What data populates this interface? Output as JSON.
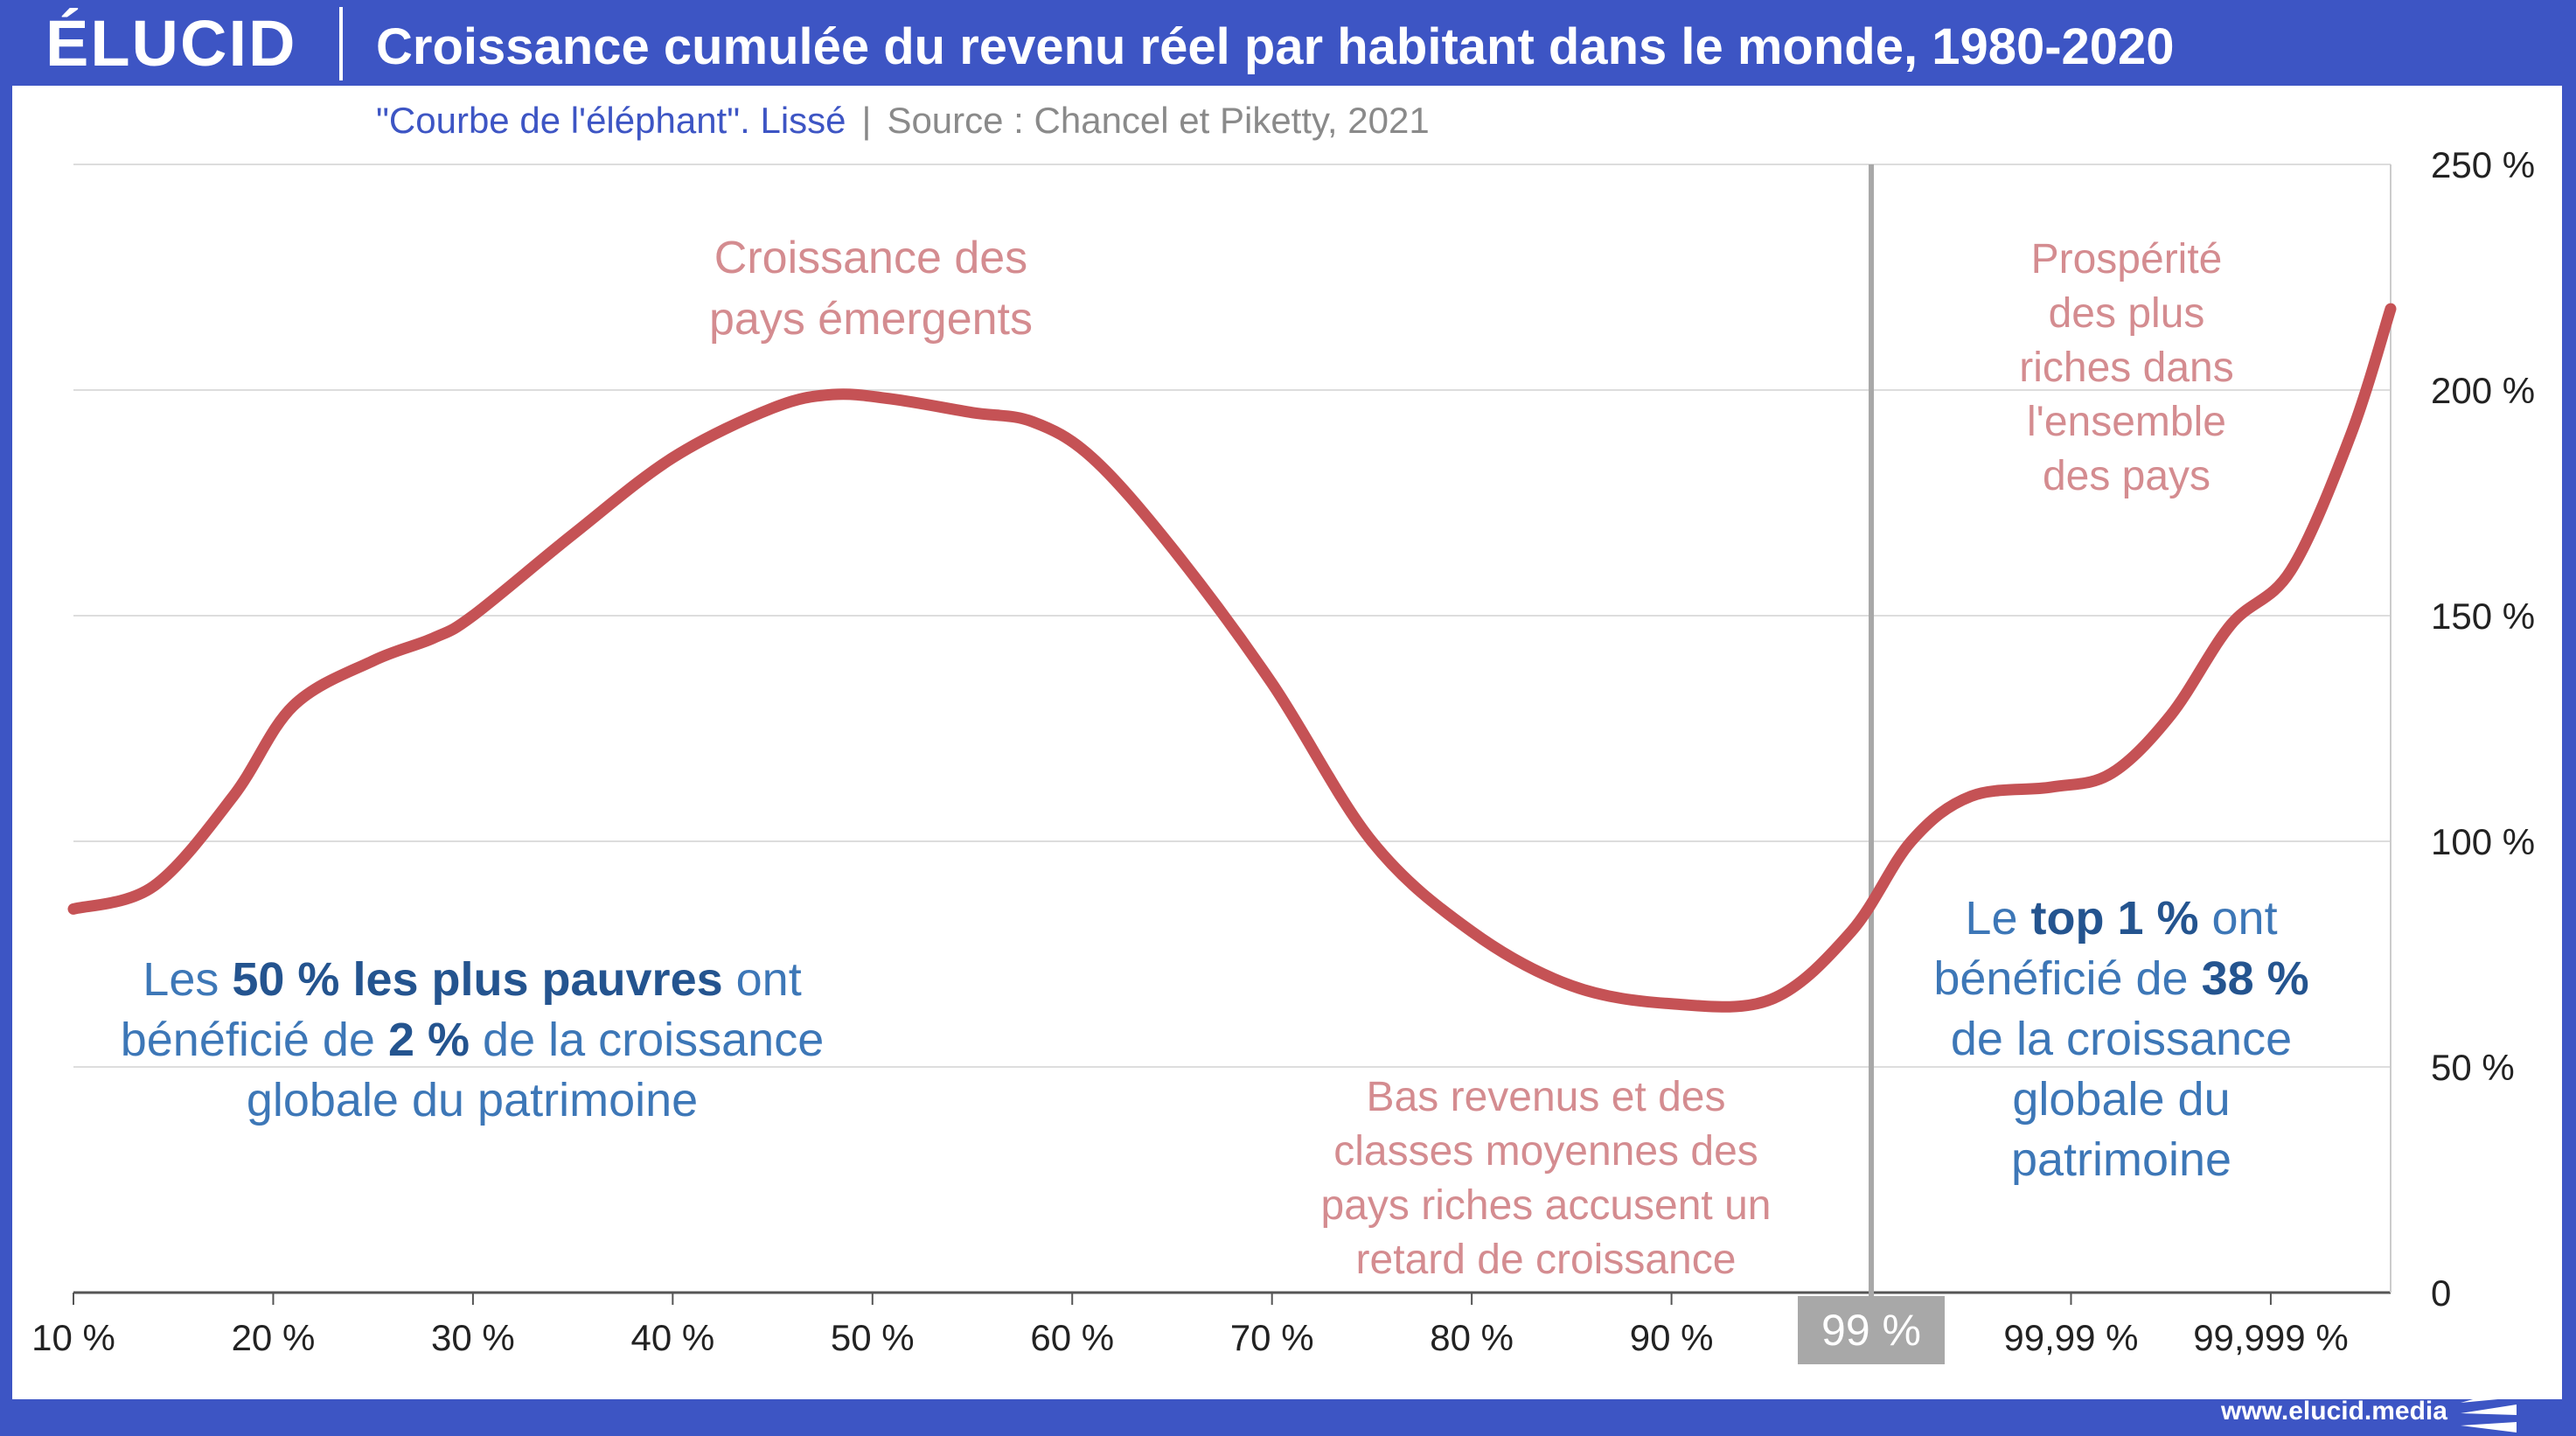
{
  "header": {
    "logo": "ÉLUCID",
    "title": "Croissance cumulée du revenu réel par habitant dans le monde, 1980-2020"
  },
  "subtitle": {
    "left": "\"Courbe de l'éléphant\". Lissé",
    "separator": "|",
    "right": "Source : Chancel et Piketty, 2021"
  },
  "footer": {
    "url": "www.elucid.media"
  },
  "colors": {
    "frame": "#3d55c4",
    "line": "#c55255",
    "annotation_pink": "#d48c90",
    "annotation_blue": "#3d77b7",
    "annotation_blue_bold": "#24548f",
    "marker_grey": "#a8a8a8"
  },
  "chart_data": {
    "type": "line",
    "xlabel": "",
    "ylabel": "",
    "ylim": [
      0,
      250
    ],
    "y_ticks": [
      {
        "value": 0,
        "label": "0"
      },
      {
        "value": 50,
        "label": "50 %"
      },
      {
        "value": 100,
        "label": "100 %"
      },
      {
        "value": 150,
        "label": "150 %"
      },
      {
        "value": 200,
        "label": "200 %"
      },
      {
        "value": 250,
        "label": "250 %"
      }
    ],
    "x_ticks": [
      {
        "label": "10 %"
      },
      {
        "label": "20 %"
      },
      {
        "label": "30 %"
      },
      {
        "label": "40 %"
      },
      {
        "label": "50 %"
      },
      {
        "label": "60 %"
      },
      {
        "label": "70 %"
      },
      {
        "label": "80 %"
      },
      {
        "label": "90 %"
      },
      {
        "label": "99 %",
        "highlight": true
      },
      {
        "label": "99,99 %"
      },
      {
        "label": "99,999 %"
      }
    ],
    "grid": true,
    "legend": "none",
    "x_index_range": [
      0,
      11.6
    ],
    "series": [
      {
        "points": [
          [
            0,
            85
          ],
          [
            0.4,
            90
          ],
          [
            0.8,
            110
          ],
          [
            1.1,
            130
          ],
          [
            1.5,
            140
          ],
          [
            1.8,
            145
          ],
          [
            2.0,
            150
          ],
          [
            2.5,
            168
          ],
          [
            3.0,
            185
          ],
          [
            3.5,
            196
          ],
          [
            3.8,
            199
          ],
          [
            4.1,
            198
          ],
          [
            4.5,
            195
          ],
          [
            4.8,
            193
          ],
          [
            5.1,
            185
          ],
          [
            5.5,
            165
          ],
          [
            6.0,
            135
          ],
          [
            6.5,
            100
          ],
          [
            7.0,
            80
          ],
          [
            7.5,
            68
          ],
          [
            8.0,
            64
          ],
          [
            8.5,
            65
          ],
          [
            8.9,
            80
          ],
          [
            9.2,
            100
          ],
          [
            9.5,
            110
          ],
          [
            9.9,
            112
          ],
          [
            10.2,
            115
          ],
          [
            10.5,
            128
          ],
          [
            10.8,
            148
          ],
          [
            11.1,
            160
          ],
          [
            11.4,
            190
          ],
          [
            11.6,
            218
          ]
        ]
      }
    ],
    "marker_line_x_index": 9,
    "annotations": {
      "emergents": [
        "Croissance des",
        "pays émergents"
      ],
      "riches": [
        "Prospérité",
        "des plus",
        "riches dans",
        "l'ensemble",
        "des pays"
      ],
      "bas_revenus": [
        "Bas revenus et des",
        "classes moyennes des",
        "pays riches accusent un",
        "retard de croissance"
      ],
      "pauvres": {
        "line1": {
          "a": "Les ",
          "b": "50 % les plus pauvres",
          "c": " ont"
        },
        "line2": {
          "a": "bénéficié de ",
          "b": "2 %",
          "c": " de la croissance"
        },
        "line3": "globale du patrimoine"
      },
      "top": {
        "line1": {
          "a": "Le ",
          "b": "top 1 %",
          "c": " ont"
        },
        "line2": {
          "a": "bénéficié de ",
          "b": "38 %"
        },
        "line3": "de la croissance",
        "line4": "globale du",
        "line5": "patrimoine"
      }
    }
  }
}
